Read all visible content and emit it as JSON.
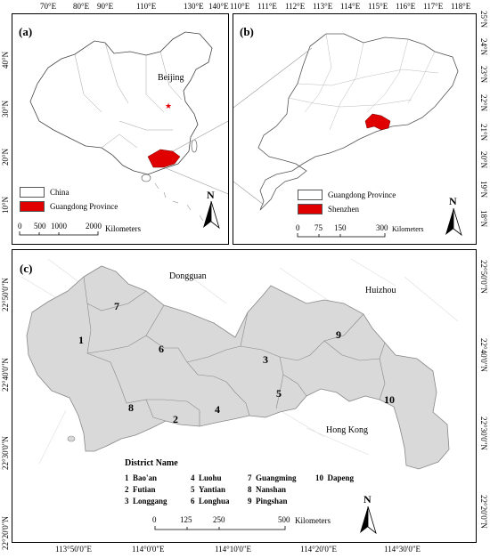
{
  "panel_a": {
    "letter": "(a)",
    "top_ticks": [
      "70°E",
      "80°E",
      "90°E",
      "110°E",
      "130°E",
      "140°E"
    ],
    "left_ticks": [
      "40°N",
      "30°N",
      "20°N",
      "10°N"
    ],
    "city": "Beijing",
    "legend": [
      {
        "label": "China",
        "color": "#ffffff"
      },
      {
        "label": "Guangdong Province",
        "color": "#e00000"
      }
    ],
    "scale_numbers": [
      "0",
      "500",
      "1000",
      "2000"
    ],
    "scale_unit": "Kilometers",
    "north": "N"
  },
  "panel_b": {
    "letter": "(b)",
    "top_ticks": [
      "110°E",
      "111°E",
      "112°E",
      "113°E",
      "114°E",
      "115°E",
      "116°E",
      "117°E",
      "118°E"
    ],
    "right_ticks": [
      "25°N",
      "24°N",
      "23°N",
      "22°N",
      "21°N",
      "20°N",
      "19°N",
      "18°N"
    ],
    "legend": [
      {
        "label": "Guangdong Province",
        "color": "#ffffff"
      },
      {
        "label": "Shenzhen",
        "color": "#e00000"
      }
    ],
    "scale_numbers": [
      "0",
      "75",
      "150",
      "300"
    ],
    "scale_unit": "Kilometers",
    "north": "N"
  },
  "panel_c": {
    "letter": "(c)",
    "bottom_ticks": [
      "113°50'0\"E",
      "114°0'0\"E",
      "114°10'0\"E",
      "114°20'0\"E",
      "114°30'0\"E"
    ],
    "left_ticks": [
      "22°50'0\"N",
      "22°40'0\"N",
      "22°30'0\"N",
      "22°20'0\"N"
    ],
    "right_ticks": [
      "22°50'0\"N",
      "22°40'0\"N",
      "22°30'0\"N",
      "22°20'0\"N"
    ],
    "neighbors": {
      "dongguan": "Dongguan",
      "huizhou": "Huizhou",
      "hongkong": "Hong Kong"
    },
    "district_numbers": [
      "1",
      "2",
      "3",
      "4",
      "5",
      "6",
      "7",
      "8",
      "9",
      "10"
    ],
    "legend_title": "District Name",
    "districts": [
      {
        "num": "1",
        "name": "Bao'an"
      },
      {
        "num": "2",
        "name": "Futian"
      },
      {
        "num": "3",
        "name": "Longgang"
      },
      {
        "num": "4",
        "name": "Luohu"
      },
      {
        "num": "5",
        "name": "Yantian"
      },
      {
        "num": "6",
        "name": "Longhua"
      },
      {
        "num": "7",
        "name": "Guangming"
      },
      {
        "num": "8",
        "name": "Nanshan"
      },
      {
        "num": "9",
        "name": "Pingshan"
      },
      {
        "num": "10",
        "name": "Dapeng"
      }
    ],
    "scale_numbers": [
      "0",
      "125",
      "250",
      "500"
    ],
    "scale_unit": "Kilometers",
    "north": "N",
    "land_color": "#d9d9d9"
  }
}
